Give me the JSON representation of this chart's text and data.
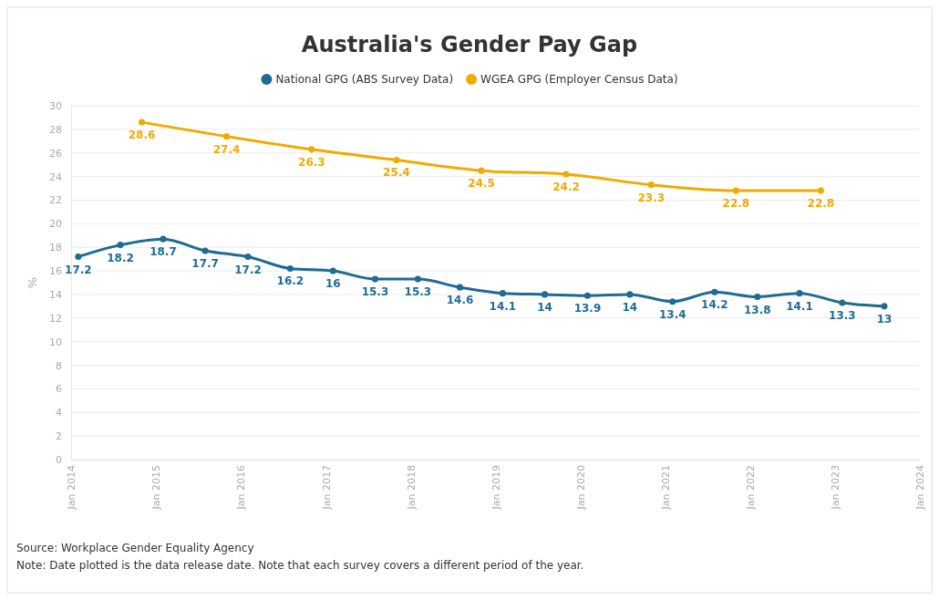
{
  "chart_data": {
    "type": "line",
    "title": "Australia's Gender Pay Gap",
    "ylabel": "%",
    "series": [
      {
        "name": "National GPG (ABS Survey Data)",
        "color": "#1f6b94",
        "x": [
          "2014-02",
          "2014-08",
          "2015-02",
          "2015-08",
          "2016-02",
          "2016-08",
          "2017-02",
          "2017-08",
          "2018-02",
          "2018-08",
          "2019-02",
          "2019-08",
          "2020-02",
          "2020-08",
          "2021-02",
          "2021-08",
          "2022-02",
          "2022-08",
          "2023-02",
          "2023-08"
        ],
        "values": [
          17.2,
          18.2,
          18.7,
          17.7,
          17.2,
          16.2,
          16,
          15.3,
          15.3,
          14.6,
          14.1,
          14,
          13.9,
          14,
          13.4,
          14.2,
          13.8,
          14.1,
          13.3,
          13
        ]
      },
      {
        "name": "WGEA GPG (Employer Census Data)",
        "color": "#f0ab00",
        "x": [
          "2014-11",
          "2015-11",
          "2016-11",
          "2017-11",
          "2018-11",
          "2019-11",
          "2020-11",
          "2021-11",
          "2022-11"
        ],
        "values": [
          28.6,
          27.4,
          26.3,
          25.4,
          24.5,
          24.2,
          23.3,
          22.8,
          22.8
        ]
      }
    ],
    "xlim": [
      "2014-01",
      "2024-01"
    ],
    "xticks": [
      {
        "value": "2014-01",
        "label": "Jan 2014"
      },
      {
        "value": "2015-01",
        "label": "Jan 2015"
      },
      {
        "value": "2016-01",
        "label": "Jan 2016"
      },
      {
        "value": "2017-01",
        "label": "Jan 2017"
      },
      {
        "value": "2018-01",
        "label": "Jan 2018"
      },
      {
        "value": "2019-01",
        "label": "Jan 2019"
      },
      {
        "value": "2020-01",
        "label": "Jan 2020"
      },
      {
        "value": "2021-01",
        "label": "Jan 2021"
      },
      {
        "value": "2022-01",
        "label": "Jan 2022"
      },
      {
        "value": "2023-01",
        "label": "Jan 2023"
      },
      {
        "value": "2024-01",
        "label": "Jan 2024"
      }
    ],
    "ylim": [
      0,
      30
    ],
    "yticks": [
      0,
      2,
      4,
      6,
      8,
      10,
      12,
      14,
      16,
      18,
      20,
      22,
      24,
      26,
      28,
      30
    ],
    "grid": "y",
    "legend": "top",
    "marker": "circle",
    "line_style": "solid",
    "data_labels": true,
    "annotations": [
      "Source: Workplace Gender Equality Agency",
      "Note: Date plotted is the data release date. Note that each survey covers a different period of the year."
    ]
  }
}
